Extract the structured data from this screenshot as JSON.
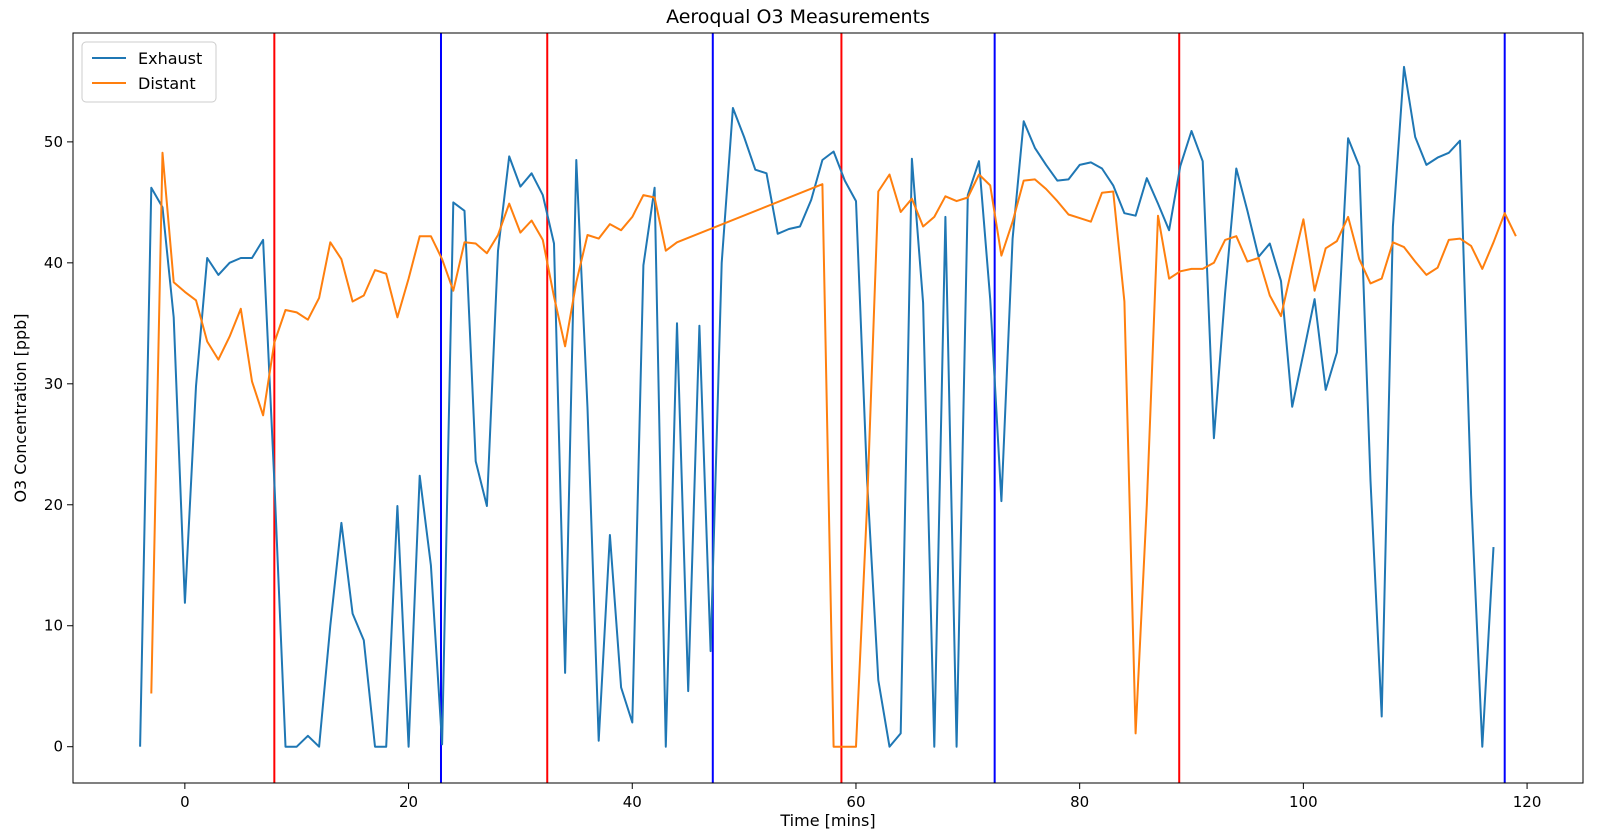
{
  "chart_data": {
    "type": "line",
    "title": "Aeroqual O3 Measurements",
    "xlabel": "Time [mins]",
    "ylabel": "O3 Concentration [ppb]",
    "xlim": [
      -10,
      125
    ],
    "ylim": [
      -3,
      59
    ],
    "xticks": [
      0,
      20,
      40,
      60,
      80,
      100,
      120
    ],
    "yticks": [
      0,
      10,
      20,
      30,
      40,
      50
    ],
    "grid": false,
    "legend": "top-left",
    "series": [
      {
        "name": "Exhaust",
        "color": "#1f77b4",
        "x": [
          -4,
          -3,
          -2,
          -1,
          0,
          1,
          2,
          3,
          4,
          5,
          6,
          7,
          8,
          9,
          10,
          11,
          12,
          13,
          14,
          15,
          16,
          17,
          18,
          19,
          20,
          21,
          22,
          23,
          24,
          25,
          26,
          27,
          28,
          29,
          30,
          31,
          32,
          33,
          34,
          35,
          36,
          37,
          38,
          39,
          40,
          41,
          42,
          43,
          44,
          45,
          46,
          47,
          48,
          49,
          50,
          51,
          52,
          53,
          54,
          55,
          56,
          57,
          58,
          59,
          60,
          61,
          62,
          63,
          64,
          65,
          66,
          67,
          68,
          69,
          70,
          71,
          72,
          73,
          74,
          75,
          76,
          77,
          78,
          79,
          80,
          81,
          82,
          83,
          84,
          85,
          86,
          87,
          88,
          89,
          90,
          91,
          92,
          93,
          94,
          95,
          96,
          97,
          98,
          99,
          100,
          101,
          102,
          103,
          104,
          105,
          106,
          107,
          108,
          109,
          110,
          111,
          112,
          113,
          114,
          115,
          116,
          117
        ],
        "y": [
          0,
          46.2,
          44.6,
          35.5,
          11.9,
          29.8,
          40.4,
          39.0,
          40.0,
          40.4,
          40.4,
          41.9,
          22.0,
          0,
          0,
          0.9,
          0,
          10.0,
          18.5,
          11.0,
          8.8,
          0,
          0,
          19.9,
          0,
          22.4,
          15.0,
          0.2,
          45.0,
          44.3,
          23.6,
          19.9,
          41.0,
          48.8,
          46.3,
          47.4,
          45.6,
          41.6,
          6.1,
          48.5,
          28.0,
          0.5,
          17.5,
          4.9,
          2.0,
          39.8,
          46.2,
          0,
          35.0,
          4.6,
          34.8,
          7.9,
          40.0,
          52.8,
          50.4,
          47.7,
          47.4,
          42.4,
          42.8,
          43.0,
          45.2,
          48.5,
          49.2,
          46.8,
          45.1,
          22.0,
          5.5,
          0,
          1.1,
          48.6,
          36.7,
          0,
          43.8,
          0,
          45.6,
          48.4,
          37.0,
          20.3,
          42.0,
          51.7,
          49.5,
          48.1,
          46.8,
          46.9,
          48.1,
          48.3,
          47.8,
          46.4,
          44.1,
          43.9,
          47.0,
          44.9,
          42.7,
          48.0,
          50.9,
          48.4,
          25.5,
          37.5,
          47.8,
          44.3,
          40.5,
          41.6,
          38.5,
          28.1,
          32.5,
          37.0,
          29.5,
          32.6,
          50.3,
          48.0,
          22.0,
          2.5,
          43.0,
          56.2,
          50.4,
          48.1,
          48.7,
          49.1,
          50.1,
          20.8,
          0,
          16.5
        ]
      },
      {
        "name": "Distant",
        "color": "#ff7f0e",
        "x": [
          -3,
          -2,
          -1,
          0,
          1,
          2,
          3,
          4,
          5,
          6,
          7,
          8,
          9,
          10,
          11,
          12,
          13,
          14,
          15,
          16,
          17,
          18,
          19,
          20,
          21,
          22,
          23,
          24,
          25,
          26,
          27,
          28,
          29,
          30,
          31,
          32,
          33,
          34,
          35,
          36,
          37,
          38,
          39,
          40,
          41,
          42,
          43,
          44,
          57,
          58,
          59,
          60,
          61,
          62,
          63,
          64,
          65,
          66,
          67,
          68,
          69,
          70,
          71,
          72,
          73,
          74,
          75,
          76,
          77,
          78,
          79,
          80,
          81,
          82,
          83,
          84,
          85,
          86,
          87,
          88,
          89,
          90,
          91,
          92,
          93,
          94,
          95,
          96,
          97,
          98,
          99,
          100,
          101,
          102,
          103,
          104,
          105,
          106,
          107,
          108,
          109,
          110,
          111,
          112,
          113,
          114,
          115,
          116,
          117,
          118,
          119
        ],
        "y": [
          4.4,
          49.1,
          38.4,
          37.6,
          36.9,
          33.5,
          32.0,
          33.9,
          36.2,
          30.2,
          27.4,
          33.4,
          36.1,
          35.9,
          35.3,
          37.1,
          41.7,
          40.3,
          36.8,
          37.3,
          39.4,
          39.1,
          35.5,
          38.7,
          42.2,
          42.2,
          40.3,
          37.7,
          41.7,
          41.6,
          40.8,
          42.3,
          44.9,
          42.5,
          43.5,
          41.9,
          37.2,
          33.1,
          38.4,
          42.3,
          42.0,
          43.2,
          42.7,
          43.8,
          45.6,
          45.4,
          41.0,
          41.7,
          46.5,
          0,
          0,
          0,
          20.0,
          45.9,
          47.3,
          44.2,
          45.3,
          43.0,
          43.8,
          45.5,
          45.1,
          45.4,
          47.3,
          46.4,
          40.6,
          43.4,
          46.8,
          46.9,
          46.1,
          45.1,
          44.0,
          43.7,
          43.4,
          45.8,
          45.9,
          36.8,
          1.1,
          20.0,
          43.9,
          38.7,
          39.3,
          39.5,
          39.5,
          40.0,
          41.9,
          42.2,
          40.1,
          40.4,
          37.3,
          35.6,
          39.7,
          43.6,
          37.7,
          41.2,
          41.8,
          43.8,
          40.3,
          38.3,
          38.7,
          41.7,
          41.3,
          40.1,
          39.0,
          39.6,
          41.9,
          42.0,
          41.4,
          39.5,
          41.7,
          44.1,
          42.2
        ]
      }
    ],
    "vlines": [
      {
        "x": 8.0,
        "color": "#ff0000"
      },
      {
        "x": 22.9,
        "color": "#0000ff"
      },
      {
        "x": 32.4,
        "color": "#ff0000"
      },
      {
        "x": 47.2,
        "color": "#0000ff"
      },
      {
        "x": 58.7,
        "color": "#ff0000"
      },
      {
        "x": 72.4,
        "color": "#0000ff"
      },
      {
        "x": 88.9,
        "color": "#ff0000"
      },
      {
        "x": 118.0,
        "color": "#0000ff"
      }
    ]
  }
}
